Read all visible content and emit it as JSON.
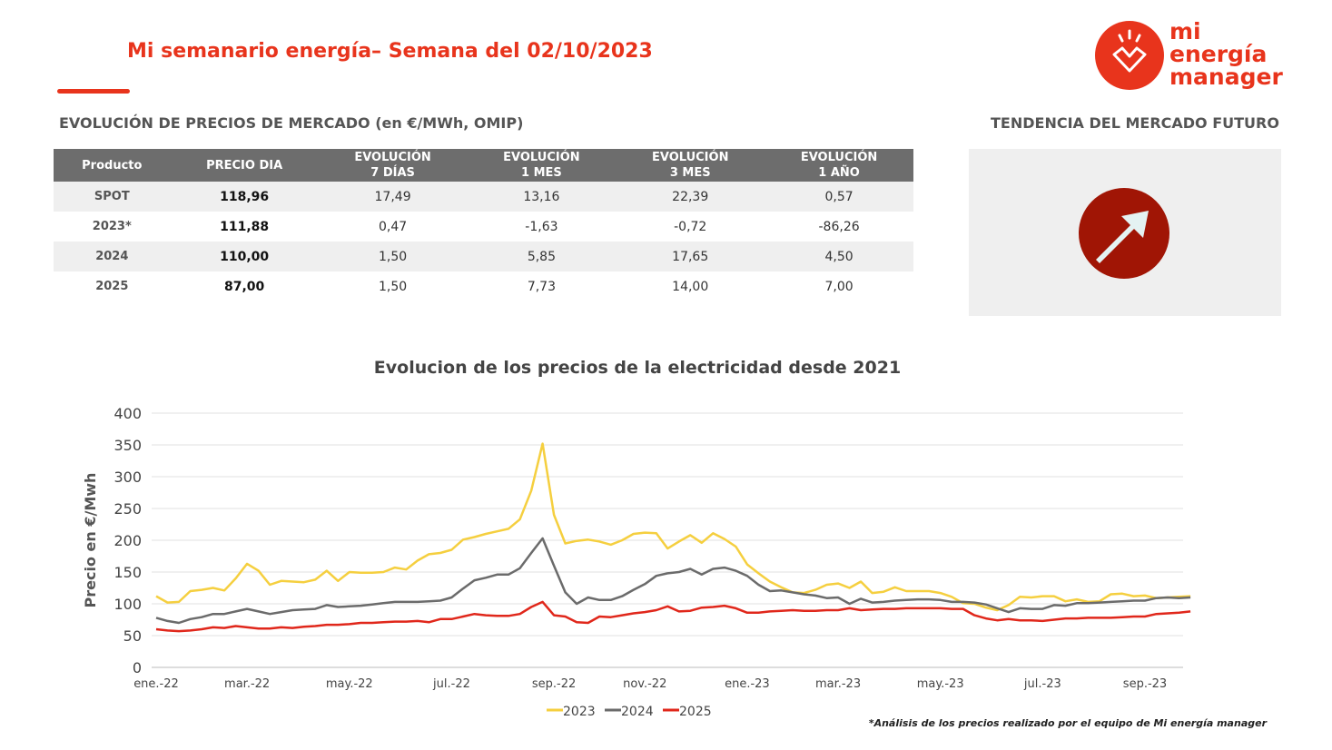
{
  "header": {
    "title": "Mi semanario energía– Semana del 02/10/2023",
    "logo": [
      "mi",
      "energía",
      "manager"
    ]
  },
  "table": {
    "title": "EVOLUCIÓN DE PRECIOS DE MERCADO (en €/MWh, OMIP)",
    "columns": [
      "Producto",
      "PRECIO DIA",
      "EVOLUCIÓN\n7 DÍAS",
      "EVOLUCIÓN\n1 MES",
      "EVOLUCIÓN\n3 MES",
      "EVOLUCIÓN\n1 AÑO"
    ],
    "rows": [
      [
        "SPOT",
        "118,96",
        "17,49",
        "13,16",
        "22,39",
        "0,57"
      ],
      [
        "2023*",
        "111,88",
        "0,47",
        "-1,63",
        "-0,72",
        "-86,26"
      ],
      [
        "2024",
        "110,00",
        "1,50",
        "5,85",
        "17,65",
        "4,50"
      ],
      [
        "2025",
        "87,00",
        "1,50",
        "7,73",
        "14,00",
        "7,00"
      ]
    ]
  },
  "trend": {
    "title": "TENDENCIA DEL MERCADO FUTURO"
  },
  "chart_data": {
    "type": "line",
    "title": "Evolucion de los precios de la electricidad desde 2021",
    "y_label": "Precio en €/Mwh",
    "categories": [
      "ene.-22",
      null,
      null,
      null,
      null,
      null,
      null,
      null,
      "mar.-22",
      null,
      null,
      null,
      null,
      null,
      null,
      null,
      null,
      "may.-22",
      null,
      null,
      null,
      null,
      null,
      null,
      null,
      null,
      "jul.-22",
      null,
      null,
      null,
      null,
      null,
      null,
      null,
      null,
      "sep.-22",
      null,
      null,
      null,
      null,
      null,
      null,
      null,
      "nov.-22",
      null,
      null,
      null,
      null,
      null,
      null,
      null,
      null,
      "ene.-23",
      null,
      null,
      null,
      null,
      null,
      null,
      null,
      "mar.-23",
      null,
      null,
      null,
      null,
      null,
      null,
      null,
      null,
      "may.-23",
      null,
      null,
      null,
      null,
      null,
      null,
      null,
      null,
      "jul.-23",
      null,
      null,
      null,
      null,
      null,
      null,
      null,
      null,
      "sep.-23",
      null,
      null,
      null,
      null
    ],
    "series": [
      {
        "name": "2023",
        "color": "#f5cf3f",
        "values": [
          112,
          102,
          103,
          120,
          122,
          125,
          121,
          140,
          163,
          152,
          130,
          136,
          135,
          134,
          138,
          152,
          136,
          150,
          149,
          149,
          150,
          157,
          154,
          168,
          178,
          180,
          185,
          201,
          205,
          210,
          214,
          218,
          233,
          278,
          352,
          240,
          195,
          199,
          201,
          198,
          193,
          200,
          210,
          212,
          211,
          187,
          198,
          208,
          196,
          211,
          202,
          190,
          162,
          148,
          135,
          126,
          118,
          117,
          122,
          130,
          132,
          125,
          135,
          117,
          119,
          126,
          120,
          120,
          120,
          117,
          111,
          101,
          100,
          94,
          90,
          98,
          111,
          110,
          112,
          112,
          104,
          107,
          103,
          104,
          115,
          116,
          112,
          113,
          109,
          110,
          111,
          112
        ]
      },
      {
        "name": "2024",
        "color": "#6b6b6b",
        "values": [
          78,
          73,
          70,
          76,
          79,
          84,
          84,
          88,
          92,
          88,
          84,
          87,
          90,
          91,
          92,
          98,
          95,
          96,
          97,
          99,
          101,
          103,
          103,
          103,
          104,
          105,
          110,
          124,
          137,
          141,
          146,
          146,
          156,
          180,
          203,
          160,
          118,
          100,
          110,
          106,
          106,
          112,
          122,
          131,
          144,
          148,
          150,
          155,
          146,
          155,
          157,
          152,
          144,
          130,
          120,
          121,
          118,
          115,
          113,
          109,
          110,
          100,
          108,
          102,
          103,
          105,
          106,
          107,
          107,
          106,
          103,
          103,
          102,
          99,
          93,
          87,
          93,
          92,
          92,
          98,
          97,
          101,
          101,
          102,
          103,
          104,
          105,
          105,
          109,
          110,
          109,
          110
        ]
      },
      {
        "name": "2025",
        "color": "#e0271b",
        "values": [
          60,
          58,
          57,
          58,
          60,
          63,
          62,
          65,
          63,
          61,
          61,
          63,
          62,
          64,
          65,
          67,
          67,
          68,
          70,
          70,
          71,
          72,
          72,
          73,
          71,
          76,
          76,
          80,
          84,
          82,
          81,
          81,
          84,
          95,
          103,
          82,
          80,
          71,
          70,
          80,
          79,
          82,
          85,
          87,
          90,
          96,
          88,
          89,
          94,
          95,
          97,
          93,
          86,
          86,
          88,
          89,
          90,
          89,
          89,
          90,
          90,
          93,
          90,
          91,
          92,
          92,
          93,
          93,
          93,
          93,
          92,
          92,
          82,
          77,
          74,
          76,
          74,
          74,
          73,
          75,
          77,
          77,
          78,
          78,
          78,
          79,
          80,
          80,
          84,
          85,
          86,
          88
        ]
      }
    ],
    "ylim": [
      0,
      400
    ],
    "yticks": [
      0,
      50,
      100,
      150,
      200,
      250,
      300,
      350,
      400
    ],
    "grid": true,
    "legend": "bottom"
  },
  "footnote": "*Análisis de los precios realizado por el equipo de Mi energía manager"
}
